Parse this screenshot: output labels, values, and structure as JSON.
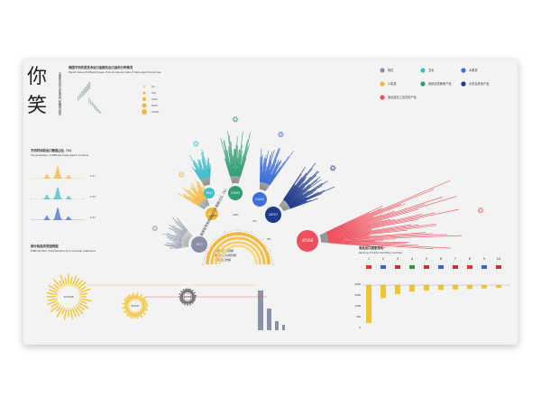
{
  "poster": {
    "title_glyphs": [
      "你",
      "笑"
    ],
    "title_vertical": "中国各省份与年度出口数据可视化",
    "tl_chart": {
      "title_cn": "我国不同类型技术出口金额及出口省份分布情况",
      "title_en": "Export value of different types of provinces and data of trade export provinces",
      "legend_values": [
        "10",
        "100",
        "1000",
        "5000",
        "10000"
      ]
    },
    "mid_left_chart": {
      "title_cn": "不同时间段出口数据占比（%）",
      "title_en": "The proportion of different trade export countries",
      "value_labels": [
        "0.47",
        "0.25",
        "0.31"
      ]
    },
    "bottom_left_chart": {
      "title_cn": "部分商品类型结构图",
      "title_en": "Different item characteristics and consumer preference",
      "values": [
        "152995",
        "35947",
        "12456"
      ]
    },
    "center": {
      "arc_title": "我国各种类商品出口交易额占比（%）",
      "arc_labels": [
        "40%",
        "10%",
        "1%",
        "5%"
      ],
      "center_labels": [
        "国家出口交易额",
        "国际出口交易份额",
        "各国出口份额"
      ]
    },
    "legend": [
      {
        "label": "棉花",
        "color": "#8a8fa8"
      },
      {
        "label": "玉米",
        "color": "#41bcc9"
      },
      {
        "label": "水果类",
        "color": "#3f6fd8"
      },
      {
        "label": "小麦类",
        "color": "#f4b73a"
      },
      {
        "label": "其他谷类粮食产品",
        "color": "#2f9e74"
      },
      {
        "label": "大米及其他产品",
        "color": "#1f3a8c"
      },
      {
        "label": "食品类加工及饮料产品",
        "color": "#f0505e"
      }
    ],
    "right_chart": {
      "title_cn": "商品出口国家排名",
      "title_en": "Ranking of trade importing countries",
      "axis_labels": [
        "2000",
        "1500",
        "1000",
        "500",
        "0"
      ]
    }
  },
  "chart_data": {
    "type": "bar",
    "fan_groups": [
      {
        "name": "棉花",
        "value": 1271,
        "color": "#8a8fa8"
      },
      {
        "name": "小麦类",
        "value": 4497,
        "color": "#f4b73a"
      },
      {
        "name": "玉米",
        "value": 3807,
        "color": "#41bcc9"
      },
      {
        "name": "其他谷类粮食产品",
        "value": 13003,
        "color": "#2f9e74"
      },
      {
        "name": "水果类",
        "value": 14242,
        "color": "#3f6fd8"
      },
      {
        "name": "大米及其他产品",
        "value": 18707,
        "color": "#1f3a8c"
      },
      {
        "name": "食品类加工及饮料产品",
        "value": 40168,
        "color": "#f0505e"
      }
    ],
    "ranking": {
      "categories": [
        "1",
        "2",
        "3",
        "4",
        "5",
        "6",
        "7",
        "8",
        "9",
        "10"
      ],
      "values": [
        1750,
        600,
        420,
        300,
        250,
        220,
        200,
        180,
        160,
        130
      ],
      "ylim": [
        0,
        2000
      ]
    }
  }
}
